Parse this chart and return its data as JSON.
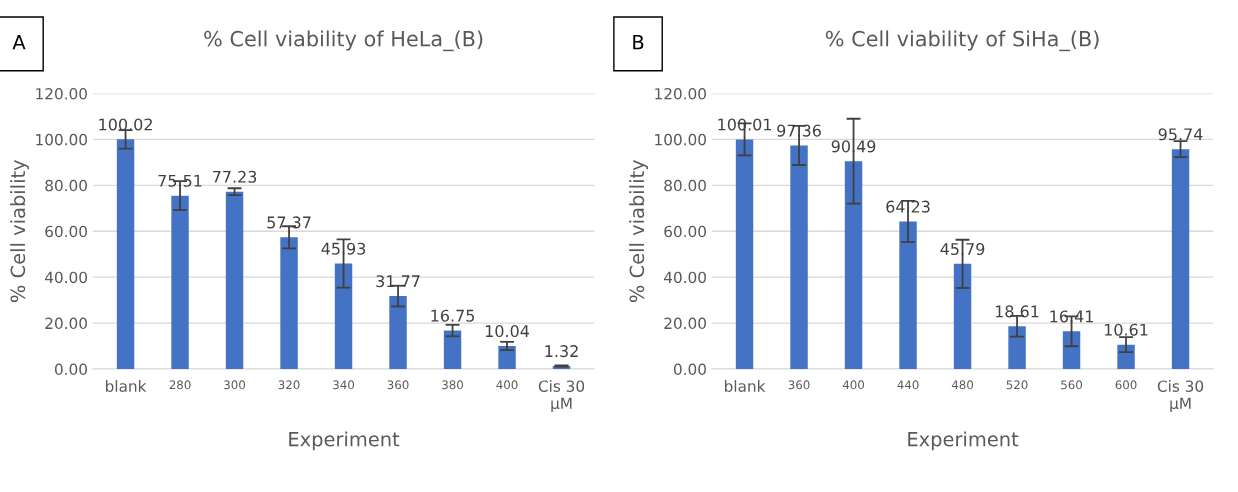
{
  "chart_data": [
    {
      "type": "bar",
      "title": "% Cell viability of HeLa_(B)",
      "xlabel": "Experiment",
      "ylabel": "% Cell viability",
      "annotations": [
        "A"
      ],
      "categories": [
        "blank",
        "280",
        "300",
        "320",
        "340",
        "360",
        "380",
        "400",
        "Cis 30\nµM"
      ],
      "values": [
        100.02,
        75.51,
        77.23,
        57.37,
        45.93,
        31.77,
        16.75,
        10.04,
        1.32
      ],
      "errors": [
        4,
        6.3,
        1.5,
        4.8,
        10.5,
        4.5,
        2.5,
        1.8,
        0.3
      ],
      "color": "#4472c4",
      "data_labels": true,
      "grid": "y",
      "ylim": [
        0,
        120
      ],
      "yticks": [
        {
          "value": 0,
          "label": "0.00"
        },
        {
          "value": 20,
          "label": "20.00"
        },
        {
          "value": 40,
          "label": "40.00"
        },
        {
          "value": 60,
          "label": "60.00"
        },
        {
          "value": 80,
          "label": "80.00"
        },
        {
          "value": 100,
          "label": "100.00"
        },
        {
          "value": 120,
          "label": "120.00"
        }
      ]
    },
    {
      "type": "bar",
      "title": "% Cell viability of SiHa_(B)",
      "xlabel": "Experiment",
      "ylabel": "% Cell viability",
      "annotations": [
        "B"
      ],
      "categories": [
        "blank",
        "360",
        "400",
        "440",
        "480",
        "520",
        "560",
        "600",
        "Cis 30\nµM"
      ],
      "values": [
        100.01,
        97.36,
        90.49,
        64.23,
        45.79,
        18.61,
        16.41,
        10.61,
        95.74
      ],
      "errors": [
        7,
        8.5,
        18.5,
        9,
        10.5,
        4.5,
        6.5,
        3.3,
        3.5
      ],
      "color": "#4472c4",
      "data_labels": true,
      "grid": "y",
      "ylim": [
        0,
        120
      ],
      "yticks": [
        {
          "value": 0,
          "label": "0.00"
        },
        {
          "value": 20,
          "label": "20.00"
        },
        {
          "value": 40,
          "label": "40.00"
        },
        {
          "value": 60,
          "label": "60.00"
        },
        {
          "value": 80,
          "label": "80.00"
        },
        {
          "value": 100,
          "label": "100.00"
        },
        {
          "value": 120,
          "label": "120.00"
        }
      ]
    }
  ]
}
